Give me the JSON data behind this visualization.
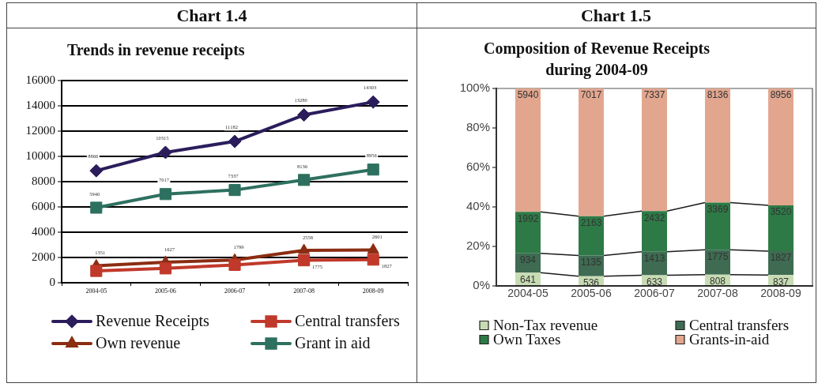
{
  "chart_data": [
    {
      "type": "line",
      "annotations": [
        "Chart 1.4"
      ],
      "title": "Trends in revenue receipts",
      "categories": [
        "2004-05",
        "2005-06",
        "2006-07",
        "2007-08",
        "2008-09"
      ],
      "series": [
        {
          "name": "Revenue Receipts",
          "color": "#2b1d5c",
          "marker": "diamond",
          "values": [
            8866,
            10315,
            11182,
            13280,
            14303
          ],
          "value_labels": [
            "8866",
            "10315",
            "11182",
            "13280",
            "14303"
          ]
        },
        {
          "name": "Central transfers",
          "color": "#c0392b",
          "marker": "square",
          "values": [
            934,
            1135,
            1413,
            1775,
            1827
          ],
          "value_labels": [
            null,
            null,
            null,
            "1775",
            "1827"
          ]
        },
        {
          "name": "Own revenue",
          "color": "#8b2d12",
          "marker": "triangle",
          "values": [
            1351,
            1627,
            1799,
            2558,
            2601
          ],
          "value_labels": [
            "1351",
            "1627",
            "1799",
            "2558",
            "2601"
          ]
        },
        {
          "name": "Grant in aid",
          "color": "#2e7060",
          "marker": "square",
          "values": [
            5940,
            7017,
            7337,
            8136,
            8956
          ],
          "value_labels": [
            "5940",
            "7017",
            "7337",
            "8136",
            "8956"
          ]
        }
      ],
      "ylim": [
        0,
        16000
      ],
      "yticks": [
        0,
        2000,
        4000,
        6000,
        8000,
        10000,
        12000,
        14000,
        16000
      ],
      "grid": "y",
      "legend": "bottom"
    },
    {
      "type": "bar",
      "stacked": true,
      "title": "Composition of Revenue Receipts during 2004-09",
      "categories": [
        "2004-05",
        "2005-06",
        "2006-07",
        "2007-08",
        "2008-09"
      ],
      "annotations": [
        "Chart 1.5",
        {
          "text": "641",
          "x": "2004-05",
          "y": 6.7
        },
        {
          "text": "934",
          "x": "2004-05",
          "y": 16.5
        },
        {
          "text": "1992",
          "x": "2004-05",
          "y": 37.5
        },
        {
          "text": "5940",
          "x": "2004-05",
          "y": 100
        },
        {
          "text": "536",
          "x": "2005-06",
          "y": 4.9
        },
        {
          "text": "1135",
          "x": "2005-06",
          "y": 15.4
        },
        {
          "text": "2163",
          "x": "2005-06",
          "y": 35.3
        },
        {
          "text": "7017",
          "x": "2005-06",
          "y": 100
        },
        {
          "text": "633",
          "x": "2006-07",
          "y": 5.4
        },
        {
          "text": "1413",
          "x": "2006-07",
          "y": 17.3
        },
        {
          "text": "2432",
          "x": "2006-07",
          "y": 37.9
        },
        {
          "text": "7337",
          "x": "2006-07",
          "y": 100
        },
        {
          "text": "808",
          "x": "2007-08",
          "y": 5.7
        },
        {
          "text": "1775",
          "x": "2007-08",
          "y": 18.3
        },
        {
          "text": "3369",
          "x": "2007-08",
          "y": 42.2
        },
        {
          "text": "8136",
          "x": "2007-08",
          "y": 100
        },
        {
          "text": "837",
          "x": "2008-09",
          "y": 5.5
        },
        {
          "text": "1827",
          "x": "2008-09",
          "y": 17.6
        },
        {
          "text": "3520",
          "x": "2008-09",
          "y": 40.8
        },
        {
          "text": "8956",
          "x": "2008-09",
          "y": 100
        }
      ],
      "series": [
        {
          "name": "Non-Tax revenue",
          "color": "#c8dcb4",
          "values": [
            6.7,
            4.9,
            5.4,
            5.7,
            5.5
          ]
        },
        {
          "name": "Central transfers",
          "color": "#3e6b52",
          "values": [
            9.8,
            10.5,
            11.9,
            12.6,
            12.1
          ]
        },
        {
          "name": "Own Taxes",
          "color": "#2e7a47",
          "values": [
            21.0,
            19.9,
            20.6,
            23.9,
            23.2
          ]
        },
        {
          "name": "Grants-in-aid",
          "color": "#e2a68f",
          "values": [
            62.5,
            64.7,
            62.1,
            57.8,
            59.2
          ]
        }
      ],
      "ylim": [
        0,
        100
      ],
      "yticks": [
        {
          "value": 0,
          "label": "0%"
        },
        {
          "value": 20,
          "label": "20%"
        },
        {
          "value": 40,
          "label": "40%"
        },
        {
          "value": 60,
          "label": "60%"
        },
        {
          "value": 80,
          "label": "80%"
        },
        {
          "value": 100,
          "label": "100%"
        }
      ],
      "legend": "bottom"
    }
  ]
}
